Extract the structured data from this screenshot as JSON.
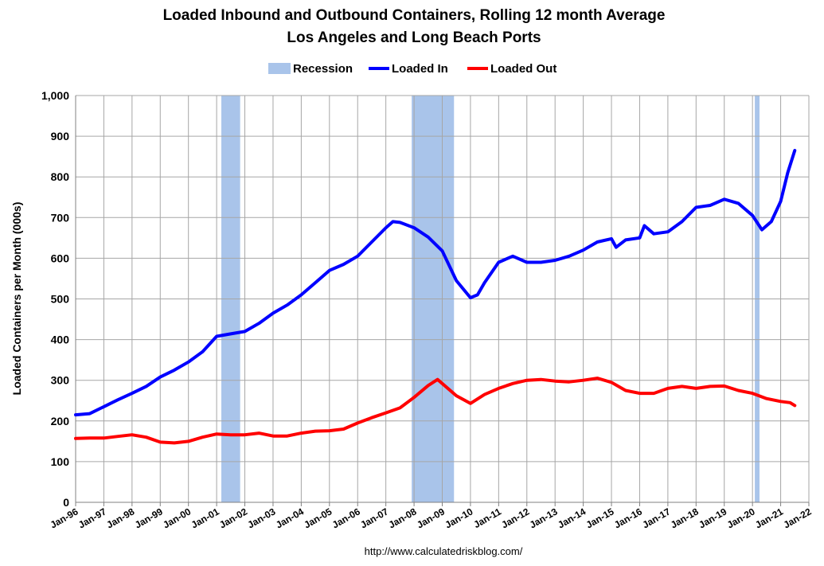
{
  "chart_data": {
    "type": "line",
    "title": "Loaded Inbound and Outbound Containers, Rolling 12 month Average",
    "subtitle": "Los Angeles and Long Beach Ports",
    "ylabel": "Loaded Containers per Month (000s)",
    "xlabel": "",
    "ylim": [
      0,
      1000
    ],
    "yticks": [
      "0",
      "100",
      "200",
      "300",
      "400",
      "500",
      "600",
      "700",
      "800",
      "900",
      "1,000"
    ],
    "xticks": [
      "Jan-96",
      "Jan-97",
      "Jan-98",
      "Jan-99",
      "Jan-00",
      "Jan-01",
      "Jan-02",
      "Jan-03",
      "Jan-04",
      "Jan-05",
      "Jan-06",
      "Jan-07",
      "Jan-08",
      "Jan-09",
      "Jan-10",
      "Jan-11",
      "Jan-12",
      "Jan-13",
      "Jan-14",
      "Jan-15",
      "Jan-16",
      "Jan-17",
      "Jan-18",
      "Jan-19",
      "Jan-20",
      "Jan-21",
      "Jan-22"
    ],
    "grid": true,
    "legend_position": "top-center",
    "source": "http://www.calculatedriskblog.com/",
    "recessions": [
      {
        "start": "2001-03",
        "end": "2001-11"
      },
      {
        "start": "2007-12",
        "end": "2009-06"
      },
      {
        "start": "2020-02",
        "end": "2020-04"
      }
    ],
    "legend": [
      {
        "name": "Recession",
        "kind": "band",
        "color": "#a9c4ea"
      },
      {
        "name": "Loaded In",
        "kind": "line",
        "color": "#0000ff"
      },
      {
        "name": "Loaded Out",
        "kind": "line",
        "color": "#ff0000"
      }
    ],
    "series": [
      {
        "name": "Loaded In",
        "color": "#0000ff",
        "points": [
          [
            "1996-01",
            215
          ],
          [
            "1996-07",
            218
          ],
          [
            "1997-01",
            235
          ],
          [
            "1997-07",
            252
          ],
          [
            "1998-01",
            268
          ],
          [
            "1998-07",
            285
          ],
          [
            "1999-01",
            308
          ],
          [
            "1999-07",
            325
          ],
          [
            "2000-01",
            345
          ],
          [
            "2000-07",
            370
          ],
          [
            "2001-01",
            408
          ],
          [
            "2001-07",
            414
          ],
          [
            "2002-01",
            420
          ],
          [
            "2002-07",
            440
          ],
          [
            "2003-01",
            465
          ],
          [
            "2003-07",
            485
          ],
          [
            "2004-01",
            510
          ],
          [
            "2004-07",
            540
          ],
          [
            "2005-01",
            570
          ],
          [
            "2005-07",
            585
          ],
          [
            "2006-01",
            605
          ],
          [
            "2006-07",
            640
          ],
          [
            "2007-01",
            675
          ],
          [
            "2007-04",
            690
          ],
          [
            "2007-07",
            688
          ],
          [
            "2008-01",
            675
          ],
          [
            "2008-07",
            652
          ],
          [
            "2009-01",
            618
          ],
          [
            "2009-07",
            545
          ],
          [
            "2010-01",
            503
          ],
          [
            "2010-04",
            510
          ],
          [
            "2010-07",
            540
          ],
          [
            "2011-01",
            590
          ],
          [
            "2011-07",
            605
          ],
          [
            "2012-01",
            590
          ],
          [
            "2012-07",
            590
          ],
          [
            "2013-01",
            595
          ],
          [
            "2013-07",
            605
          ],
          [
            "2014-01",
            620
          ],
          [
            "2014-07",
            640
          ],
          [
            "2015-01",
            648
          ],
          [
            "2015-03",
            627
          ],
          [
            "2015-07",
            645
          ],
          [
            "2016-01",
            650
          ],
          [
            "2016-03",
            680
          ],
          [
            "2016-07",
            660
          ],
          [
            "2017-01",
            665
          ],
          [
            "2017-07",
            690
          ],
          [
            "2018-01",
            725
          ],
          [
            "2018-07",
            730
          ],
          [
            "2019-01",
            745
          ],
          [
            "2019-07",
            735
          ],
          [
            "2020-01",
            705
          ],
          [
            "2020-05",
            670
          ],
          [
            "2020-09",
            690
          ],
          [
            "2021-01",
            740
          ],
          [
            "2021-04",
            810
          ],
          [
            "2021-07",
            865
          ]
        ]
      },
      {
        "name": "Loaded Out",
        "color": "#ff0000",
        "points": [
          [
            "1996-01",
            157
          ],
          [
            "1996-07",
            158
          ],
          [
            "1997-01",
            158
          ],
          [
            "1997-07",
            162
          ],
          [
            "1998-01",
            166
          ],
          [
            "1998-07",
            160
          ],
          [
            "1999-01",
            148
          ],
          [
            "1999-07",
            146
          ],
          [
            "2000-01",
            150
          ],
          [
            "2000-07",
            160
          ],
          [
            "2001-01",
            168
          ],
          [
            "2001-07",
            166
          ],
          [
            "2002-01",
            166
          ],
          [
            "2002-07",
            170
          ],
          [
            "2003-01",
            163
          ],
          [
            "2003-07",
            163
          ],
          [
            "2004-01",
            170
          ],
          [
            "2004-07",
            175
          ],
          [
            "2005-01",
            176
          ],
          [
            "2005-07",
            180
          ],
          [
            "2006-01",
            195
          ],
          [
            "2006-07",
            208
          ],
          [
            "2007-01",
            220
          ],
          [
            "2007-07",
            232
          ],
          [
            "2008-01",
            258
          ],
          [
            "2008-07",
            287
          ],
          [
            "2008-11",
            302
          ],
          [
            "2009-07",
            262
          ],
          [
            "2010-01",
            243
          ],
          [
            "2010-07",
            265
          ],
          [
            "2011-01",
            280
          ],
          [
            "2011-07",
            292
          ],
          [
            "2012-01",
            300
          ],
          [
            "2012-07",
            302
          ],
          [
            "2013-01",
            298
          ],
          [
            "2013-07",
            296
          ],
          [
            "2014-01",
            300
          ],
          [
            "2014-07",
            305
          ],
          [
            "2015-01",
            295
          ],
          [
            "2015-07",
            275
          ],
          [
            "2016-01",
            268
          ],
          [
            "2016-07",
            268
          ],
          [
            "2017-01",
            280
          ],
          [
            "2017-07",
            285
          ],
          [
            "2018-01",
            280
          ],
          [
            "2018-07",
            285
          ],
          [
            "2019-01",
            286
          ],
          [
            "2019-07",
            275
          ],
          [
            "2020-01",
            268
          ],
          [
            "2020-07",
            255
          ],
          [
            "2021-01",
            248
          ],
          [
            "2021-05",
            245
          ],
          [
            "2021-07",
            238
          ]
        ]
      }
    ]
  }
}
